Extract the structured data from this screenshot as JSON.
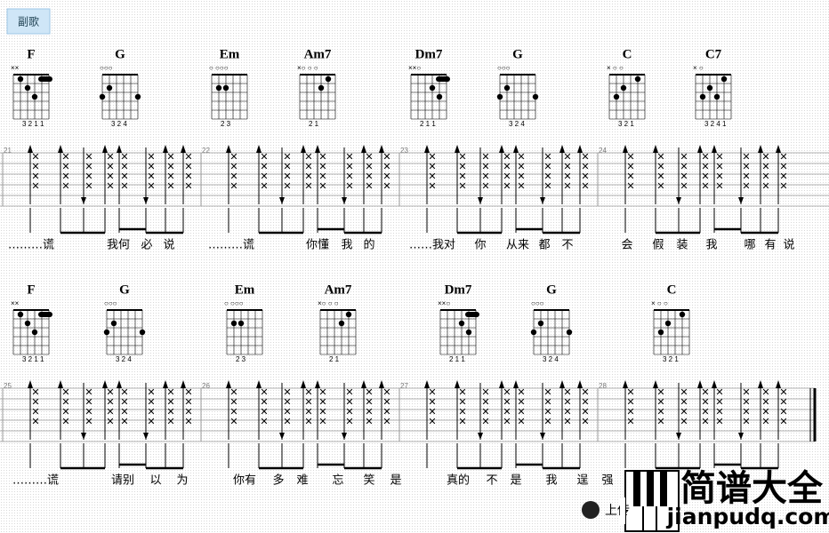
{
  "section": "副歌",
  "systems": [
    {
      "chords": [
        {
          "name": "F",
          "marks": "××",
          "fingers": "3 2 1 1"
        },
        {
          "name": "G",
          "marks": "○○○",
          "fingers": "3 2    4"
        },
        {
          "name": "Em",
          "marks": "○  ○○○",
          "fingers": "2 3"
        },
        {
          "name": "Am7",
          "marks": "×○  ○  ○",
          "fingers": "2  1"
        },
        {
          "name": "Dm7",
          "marks": "××○",
          "fingers": "2 1 1"
        },
        {
          "name": "G",
          "marks": "○○○",
          "fingers": "3 2    4"
        },
        {
          "name": "C",
          "marks": "×   ○  ○",
          "fingers": "3 2 1"
        },
        {
          "name": "C7",
          "marks": "×      ○",
          "fingers": "3 2 4 1"
        }
      ],
      "measures": [
        "21",
        "22",
        "23",
        "24"
      ],
      "lyrics": [
        "………谎",
        "我何",
        "必",
        "说",
        "………谎",
        "你懂",
        "我",
        "的",
        "……我对",
        "你",
        "从来",
        "都",
        "不",
        "会",
        "假",
        "装",
        "我",
        "哪",
        "有",
        "说"
      ]
    },
    {
      "chords": [
        {
          "name": "F",
          "marks": "××",
          "fingers": "3 2 1 1"
        },
        {
          "name": "G",
          "marks": "○○○",
          "fingers": "3 2    4"
        },
        {
          "name": "Em",
          "marks": "○  ○○○",
          "fingers": "2 3"
        },
        {
          "name": "Am7",
          "marks": "×○  ○  ○",
          "fingers": "2  1"
        },
        {
          "name": "Dm7",
          "marks": "××○",
          "fingers": "2 1 1"
        },
        {
          "name": "G",
          "marks": "○○○",
          "fingers": "3 2    4"
        },
        {
          "name": "C",
          "marks": "×   ○  ○",
          "fingers": "3 2 1"
        }
      ],
      "measures": [
        "25",
        "26",
        "27",
        "28"
      ],
      "lyrics": [
        "………谎",
        "请别",
        "以",
        "为",
        "你有",
        "多",
        "难",
        "忘",
        "笑",
        "是",
        "真的",
        "不",
        "是",
        "我",
        "逞",
        "强"
      ]
    }
  ],
  "watermark": {
    "title": "简谱大全",
    "url": "jianpudq.com",
    "upload": "上传"
  }
}
